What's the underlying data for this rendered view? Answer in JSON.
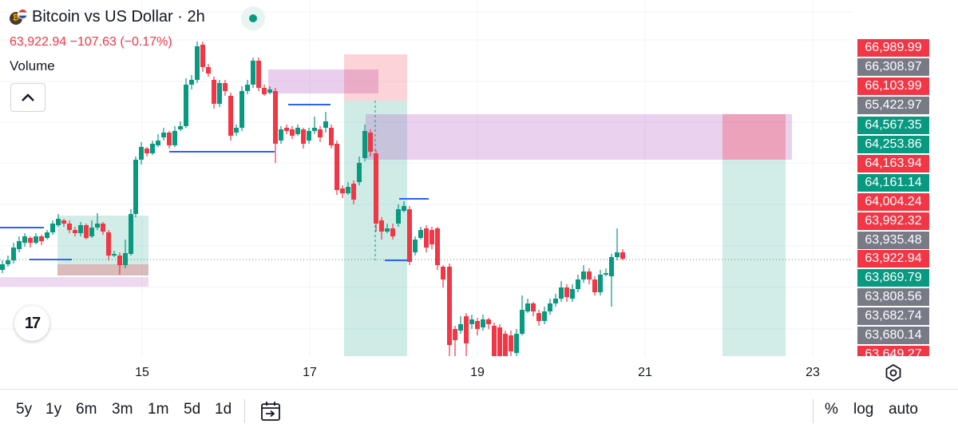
{
  "header": {
    "title": "Bitcoin vs US Dollar · 2h",
    "price_line": "63,922.94  −107.63 (−0.17%)",
    "volume_label": "Volume",
    "logo_text": "17"
  },
  "price_scale": {
    "labels": [
      {
        "text": "66,989.99",
        "color": "#f23645"
      },
      {
        "text": "66,308.97",
        "color": "#787b86"
      },
      {
        "text": "66,103.99",
        "color": "#f23645"
      },
      {
        "text": "65,422.97",
        "color": "#787b86"
      },
      {
        "text": "64,567.35",
        "color": "#089981"
      },
      {
        "text": "64,253.86",
        "color": "#089981"
      },
      {
        "text": "64,163.94",
        "color": "#f23645"
      },
      {
        "text": "64,161.14",
        "color": "#089981"
      },
      {
        "text": "64,004.24",
        "color": "#f23645"
      },
      {
        "text": "63,992.32",
        "color": "#f23645"
      },
      {
        "text": "63,935.48",
        "color": "#787b86"
      },
      {
        "text": "63,922.94",
        "color": "#f23645"
      },
      {
        "text": "63,869.79",
        "color": "#089981"
      },
      {
        "text": "63,808.56",
        "color": "#787b86"
      },
      {
        "text": "63,682.74",
        "color": "#787b86"
      },
      {
        "text": "63,680.14",
        "color": "#787b86"
      },
      {
        "text": "63,649.27",
        "color": "#f23645"
      }
    ]
  },
  "time_axis": {
    "labels": [
      "15",
      "17",
      "19",
      "21",
      "23"
    ]
  },
  "bottom_bar": {
    "ranges": [
      "5y",
      "1y",
      "6m",
      "3m",
      "1m",
      "5d",
      "1d"
    ],
    "percent_label": "%",
    "log_label": "log",
    "auto_label": "auto"
  },
  "colors": {
    "up": "#089981",
    "down": "#f23645",
    "level_line": "#2962ff"
  },
  "icons": {
    "collapse": "chevron-up-icon",
    "goto_date": "calendar-arrow-icon",
    "settings": "gear-icon"
  }
}
